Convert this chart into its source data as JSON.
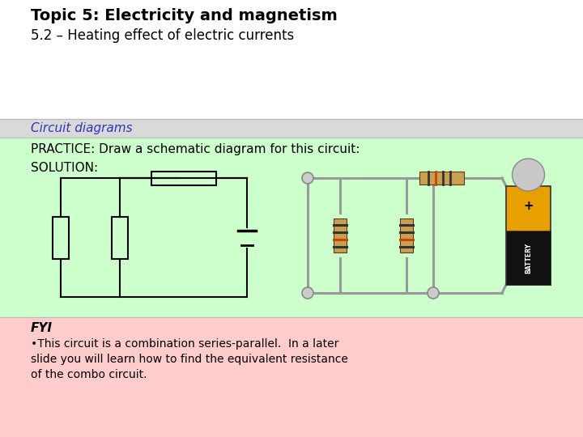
{
  "title_bold": "Topic 5: Electricity and magnetism",
  "title_normal": "5.2 – Heating effect of electric currents",
  "section_label": "Circuit diagrams",
  "section_label_color": "#3333bb",
  "practice_text": "PRACTICE: Draw a schematic diagram for this circuit:",
  "solution_text": "SOLUTION:",
  "fyi_label": "FYI",
  "fyi_line1": "•This circuit is a combination series-parallel.  In a later",
  "fyi_line2": "slide you will learn how to find the equivalent resistance",
  "fyi_line3": "of the combo circuit.",
  "bg_white": "#ffffff",
  "bg_gray": "#d9d9d9",
  "bg_green": "#ccffcc",
  "bg_pink": "#ffcccc",
  "title_fontsize": 14,
  "subtitle_fontsize": 12,
  "body_fontsize": 11,
  "small_fontsize": 10,
  "fig_width": 7.2,
  "fig_height": 5.4
}
